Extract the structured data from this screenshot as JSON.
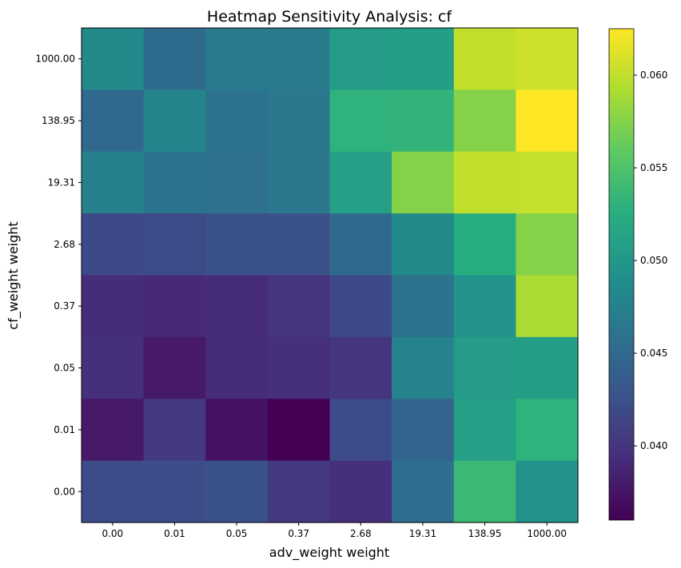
{
  "chart_data": {
    "type": "heatmap",
    "title": "Heatmap Sensitivity Analysis: cf",
    "xlabel": "adv_weight weight",
    "ylabel": "cf_weight weight",
    "x_categories": [
      "0.00",
      "0.01",
      "0.05",
      "0.37",
      "2.68",
      "19.31",
      "138.95",
      "1000.00"
    ],
    "y_categories": [
      "1000.00",
      "138.95",
      "19.31",
      "2.68",
      "0.37",
      "0.05",
      "0.01",
      "0.00"
    ],
    "values": [
      [
        0.0485,
        0.0452,
        0.0468,
        0.047,
        0.0505,
        0.0508,
        0.06,
        0.0605
      ],
      [
        0.045,
        0.048,
        0.046,
        0.0465,
        0.053,
        0.0532,
        0.0575,
        0.0625
      ],
      [
        0.0475,
        0.0462,
        0.0458,
        0.0465,
        0.051,
        0.0575,
        0.06,
        0.0602
      ],
      [
        0.0418,
        0.042,
        0.0425,
        0.0425,
        0.045,
        0.0485,
        0.0525,
        0.0575
      ],
      [
        0.0392,
        0.039,
        0.0392,
        0.04,
        0.0418,
        0.046,
        0.0495,
        0.059
      ],
      [
        0.0395,
        0.0378,
        0.0392,
        0.0395,
        0.04,
        0.0478,
        0.0505,
        0.0508
      ],
      [
        0.0378,
        0.0405,
        0.0372,
        0.036,
        0.042,
        0.0445,
        0.051,
        0.053
      ],
      [
        0.042,
        0.0422,
        0.0425,
        0.0405,
        0.0395,
        0.0455,
        0.0538,
        0.0495
      ]
    ],
    "colormap": "viridis",
    "colorbar": {
      "min": 0.036,
      "max": 0.0625,
      "ticks": [
        "0.040",
        "0.045",
        "0.050",
        "0.055",
        "0.060"
      ]
    }
  }
}
